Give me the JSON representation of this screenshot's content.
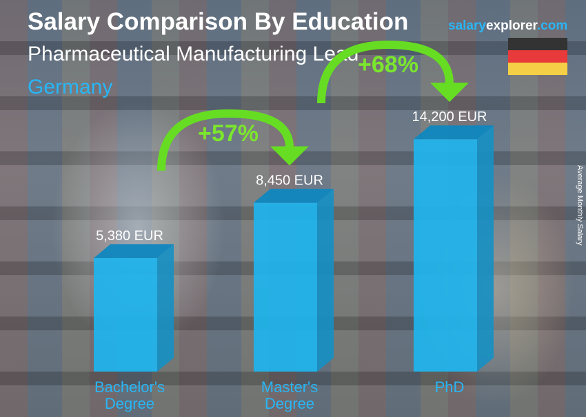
{
  "header": {
    "title": "Salary Comparison By Education",
    "subtitle": "Pharmaceutical Manufacturing Lead",
    "country": "Germany"
  },
  "logo": {
    "part1": "salary",
    "part2": "explorer",
    "part3": ".com"
  },
  "flag": {
    "colors": [
      "#333333",
      "#e83a3a",
      "#f5cf45"
    ]
  },
  "chart_data": {
    "type": "bar",
    "categories": [
      "Bachelor's Degree",
      "Master's Degree",
      "PhD"
    ],
    "category_lines": [
      [
        "Bachelor's",
        "Degree"
      ],
      [
        "Master's",
        "Degree"
      ],
      [
        "PhD",
        ""
      ]
    ],
    "values": [
      5380,
      8450,
      14200
    ],
    "value_labels": [
      "5,380 EUR",
      "8,450 EUR",
      "14,200 EUR"
    ],
    "ylabel": "Average Monthly Salary",
    "annotations": [
      {
        "from": 0,
        "to": 1,
        "text": "+57%"
      },
      {
        "from": 1,
        "to": 2,
        "text": "+68%"
      }
    ],
    "colors": {
      "bar": "#1eb4ee",
      "arrow": "#66dd22",
      "category": "#29b6f6"
    }
  }
}
